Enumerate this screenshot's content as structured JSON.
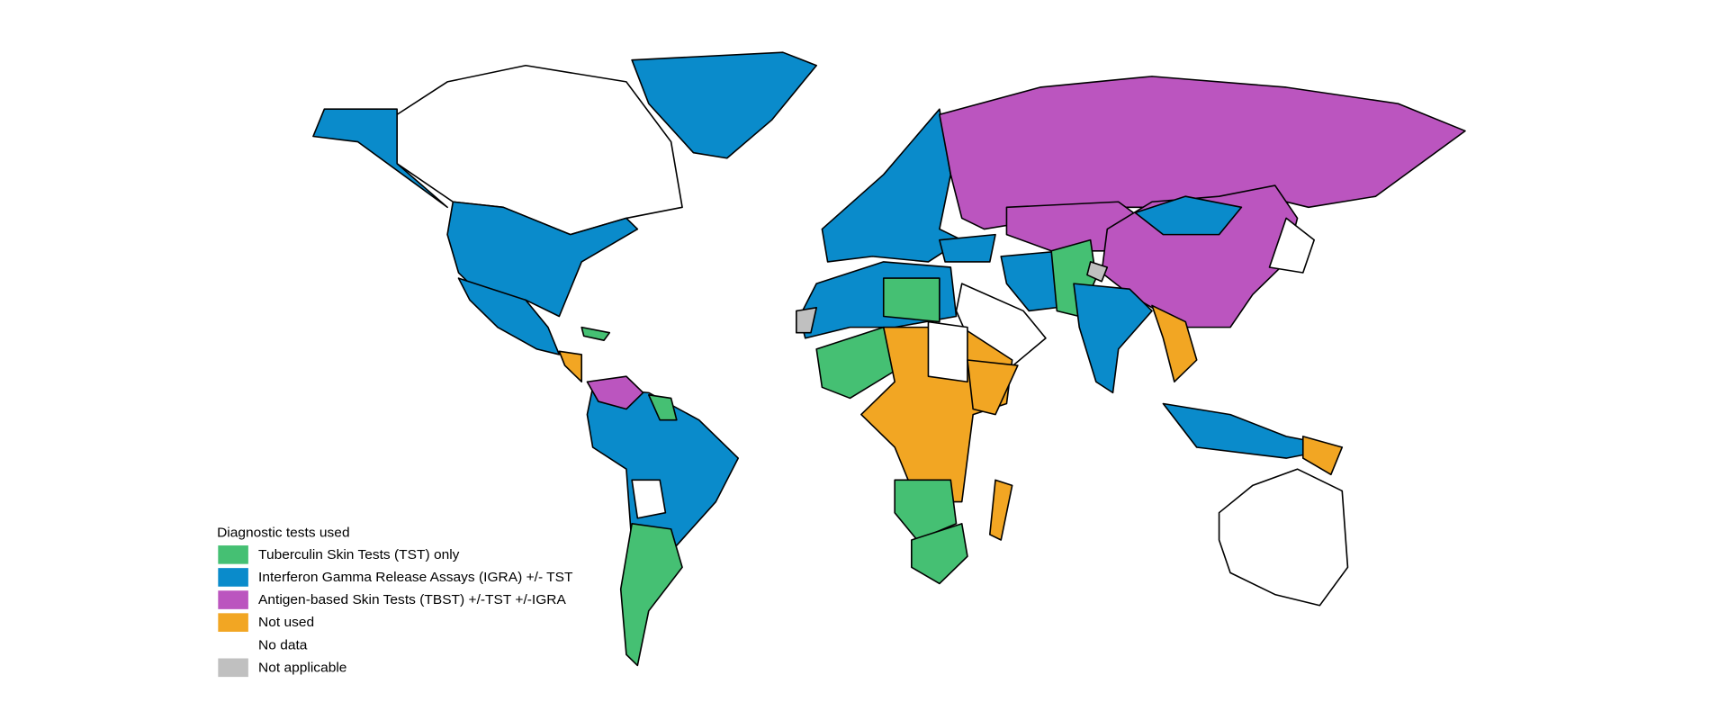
{
  "legend": {
    "title": "Diagnostic tests used",
    "items": [
      {
        "label": "Tuberculin Skin Tests (TST) only",
        "color": "#45c073"
      },
      {
        "label": "Interferon Gamma Release Assays (IGRA) +/- TST",
        "color": "#0a8bcb"
      },
      {
        "label": "Antigen-based Skin Tests (TBST) +/-TST +/-IGRA",
        "color": "#bb55bf"
      },
      {
        "label": "Not used",
        "color": "#f2a623"
      },
      {
        "label": "No data",
        "color": "#ffffff"
      },
      {
        "label": "Not applicable",
        "color": "#c0c0c0"
      }
    ]
  }
}
